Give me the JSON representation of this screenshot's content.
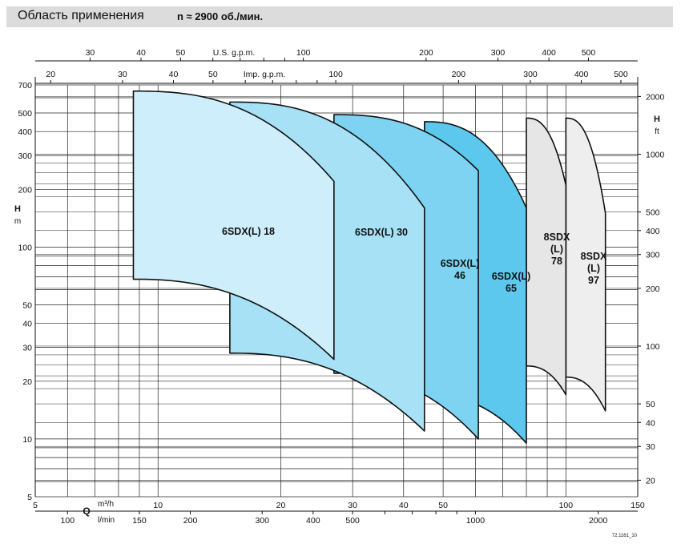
{
  "header": {
    "title": "Область применения",
    "speed": "n ≈ 2900 об./мин."
  },
  "colors": {
    "light_blue": "#cdeefa",
    "mid_blue": "#a6e1f6",
    "blue": "#7fd3f2",
    "deep_blue": "#5cc8ee",
    "grey": "#e7e6e6",
    "light_grey": "#efeeee",
    "stroke": "#111111",
    "header_bg": "#dcdcdc"
  },
  "chart_data": {
    "type": "area",
    "xscale": "log",
    "yscale": "log",
    "x_unit": "m³/h",
    "y_unit": "m",
    "xlim": [
      5,
      150
    ],
    "ylim": [
      5,
      700
    ],
    "axes": {
      "left": {
        "label": "H",
        "unit": "m",
        "ticks": [
          5,
          10,
          20,
          30,
          40,
          50,
          100,
          200,
          300,
          400,
          500,
          700
        ]
      },
      "right": {
        "label": "H",
        "unit": "ft",
        "ticks": [
          20,
          30,
          40,
          50,
          100,
          200,
          300,
          400,
          500,
          1000,
          2000
        ]
      },
      "bottom_m3h": {
        "label": "Q",
        "unit": "m³/h",
        "ticks": [
          5,
          10,
          20,
          30,
          40,
          50,
          100,
          150
        ]
      },
      "bottom_lmin": {
        "unit": "l/min",
        "ticks": [
          100,
          150,
          200,
          300,
          400,
          500,
          1000,
          2000
        ]
      },
      "top_usgpm": {
        "label": "U.S. g.p.m.",
        "ticks": [
          30,
          40,
          50,
          100,
          200,
          300,
          400,
          500
        ]
      },
      "top_impgpm": {
        "label": "Imp. g.p.m.",
        "ticks": [
          20,
          30,
          40,
          50,
          100,
          200,
          300,
          400,
          500
        ]
      }
    },
    "series": [
      {
        "name": "6SDX(L) 18",
        "color": "light_blue",
        "q_min": 8.7,
        "q_max": 27,
        "h_max_top": 650,
        "h_max_end": 220,
        "h_min_start": 68,
        "h_min_end": 26
      },
      {
        "name": "6SDX(L) 30",
        "color": "mid_blue",
        "q_min": 15,
        "q_max": 45,
        "h_max_top": 570,
        "h_max_end": 160,
        "h_min_start": 28,
        "h_min_end": 11
      },
      {
        "name": "6SDX(L) 46",
        "color": "blue",
        "q_min": 27,
        "q_max": 61,
        "h_max_top": 490,
        "h_max_end": 250,
        "h_min_start": 22,
        "h_min_end": 10
      },
      {
        "name": "6SDX(L) 65",
        "color": "deep_blue",
        "q_min": 45,
        "q_max": 80,
        "h_max_top": 450,
        "h_max_end": 160,
        "h_min_start": 17,
        "h_min_end": 9.5
      },
      {
        "name": "8SDX (L) 78",
        "color": "grey",
        "q_min": 80,
        "q_max": 100,
        "h_max_top": 470,
        "h_max_end": 210,
        "h_min_start": 24,
        "h_min_end": 17
      },
      {
        "name": "8SDX (L) 97",
        "color": "light_grey",
        "q_min": 100,
        "q_max": 125,
        "h_max_top": 470,
        "h_max_end": 150,
        "h_min_start": 21,
        "h_min_end": 14
      }
    ],
    "labels": [
      {
        "lines": [
          "6SDX(L) 18"
        ]
      },
      {
        "lines": [
          "6SDX(L) 30"
        ]
      },
      {
        "lines": [
          "6SDX(L)",
          "46"
        ]
      },
      {
        "lines": [
          "6SDX(L)",
          "65"
        ]
      },
      {
        "lines": [
          "8SDX",
          "(L)",
          "78"
        ]
      },
      {
        "lines": [
          "8SDX",
          "(L)",
          "97"
        ]
      }
    ],
    "footnote": "72.1161_10"
  }
}
